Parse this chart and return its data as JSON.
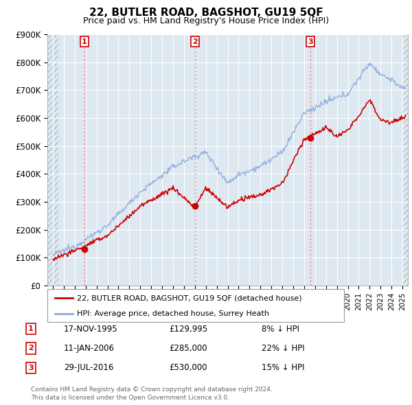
{
  "title": "22, BUTLER ROAD, BAGSHOT, GU19 5QF",
  "subtitle": "Price paid vs. HM Land Registry's House Price Index (HPI)",
  "ylim": [
    0,
    900000
  ],
  "yticks": [
    0,
    100000,
    200000,
    300000,
    400000,
    500000,
    600000,
    700000,
    800000,
    900000
  ],
  "ytick_labels": [
    "£0",
    "£100K",
    "£200K",
    "£300K",
    "£400K",
    "£500K",
    "£600K",
    "£700K",
    "£800K",
    "£900K"
  ],
  "background_color": "#ffffff",
  "plot_bg_color": "#dde8f0",
  "grid_color": "#ffffff",
  "sale_color": "#cc0000",
  "hpi_color": "#88aadd",
  "vline_color": "#ee8888",
  "transactions": [
    {
      "label": "1",
      "date_x": 1995.88,
      "price": 129995,
      "text": "17-NOV-1995",
      "price_text": "£129,995",
      "hpi_text": "8% ↓ HPI"
    },
    {
      "label": "2",
      "date_x": 2006.03,
      "price": 285000,
      "text": "11-JAN-2006",
      "price_text": "£285,000",
      "hpi_text": "22% ↓ HPI"
    },
    {
      "label": "3",
      "date_x": 2016.58,
      "price": 530000,
      "text": "29-JUL-2016",
      "price_text": "£530,000",
      "hpi_text": "15% ↓ HPI"
    }
  ],
  "legend_sale_label": "22, BUTLER ROAD, BAGSHOT, GU19 5QF (detached house)",
  "legend_hpi_label": "HPI: Average price, detached house, Surrey Heath",
  "footer1": "Contains HM Land Registry data © Crown copyright and database right 2024.",
  "footer2": "This data is licensed under the Open Government Licence v3.0.",
  "xlim_start": 1992.5,
  "xlim_end": 2025.5,
  "hatch_right_start": 2025.0
}
